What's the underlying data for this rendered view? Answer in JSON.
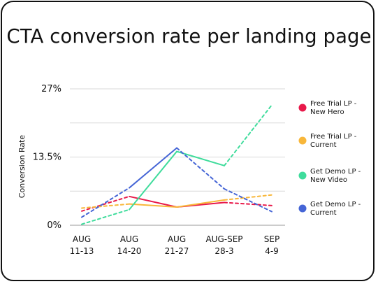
{
  "chart_data": {
    "type": "line",
    "title": "CTA conversion rate per landing page",
    "ylabel": "Conversion Rate",
    "ylim": [
      0,
      27
    ],
    "yticks": [
      {
        "value": 27,
        "label": "27%"
      },
      {
        "value": 13.5,
        "label": "13.5%"
      },
      {
        "value": 0,
        "label": "0%"
      }
    ],
    "categories": [
      [
        "AUG",
        "11-13"
      ],
      [
        "AUG",
        "14-20"
      ],
      [
        "AUG",
        "21-27"
      ],
      [
        "AUG-SEP",
        "28-3"
      ],
      [
        "SEP",
        "4-9"
      ]
    ],
    "legend_position": "right",
    "grid": true,
    "series": [
      {
        "name": [
          "Free Trial LP -",
          "New Hero"
        ],
        "color": "#e8194a",
        "values": [
          2.8,
          5.7,
          3.6,
          4.5,
          3.9
        ],
        "dashed_segments": [
          true,
          false,
          false,
          true
        ]
      },
      {
        "name": [
          "Free Trial LP -",
          "Current"
        ],
        "color": "#f8b73a",
        "values": [
          3.4,
          4.2,
          3.6,
          5.0,
          6.0
        ],
        "dashed_segments": [
          true,
          false,
          false,
          true
        ]
      },
      {
        "name": [
          "Get Demo LP -",
          "New Video"
        ],
        "color": "#3fdc9c",
        "values": [
          0.2,
          3.1,
          14.6,
          11.8,
          23.8
        ],
        "dashed_segments": [
          true,
          false,
          false,
          true
        ]
      },
      {
        "name": [
          "Get Demo LP -",
          "Current"
        ],
        "color": "#4565d6",
        "values": [
          1.6,
          7.4,
          15.3,
          7.2,
          2.7
        ],
        "dashed_segments": [
          true,
          false,
          true,
          true
        ]
      }
    ]
  }
}
